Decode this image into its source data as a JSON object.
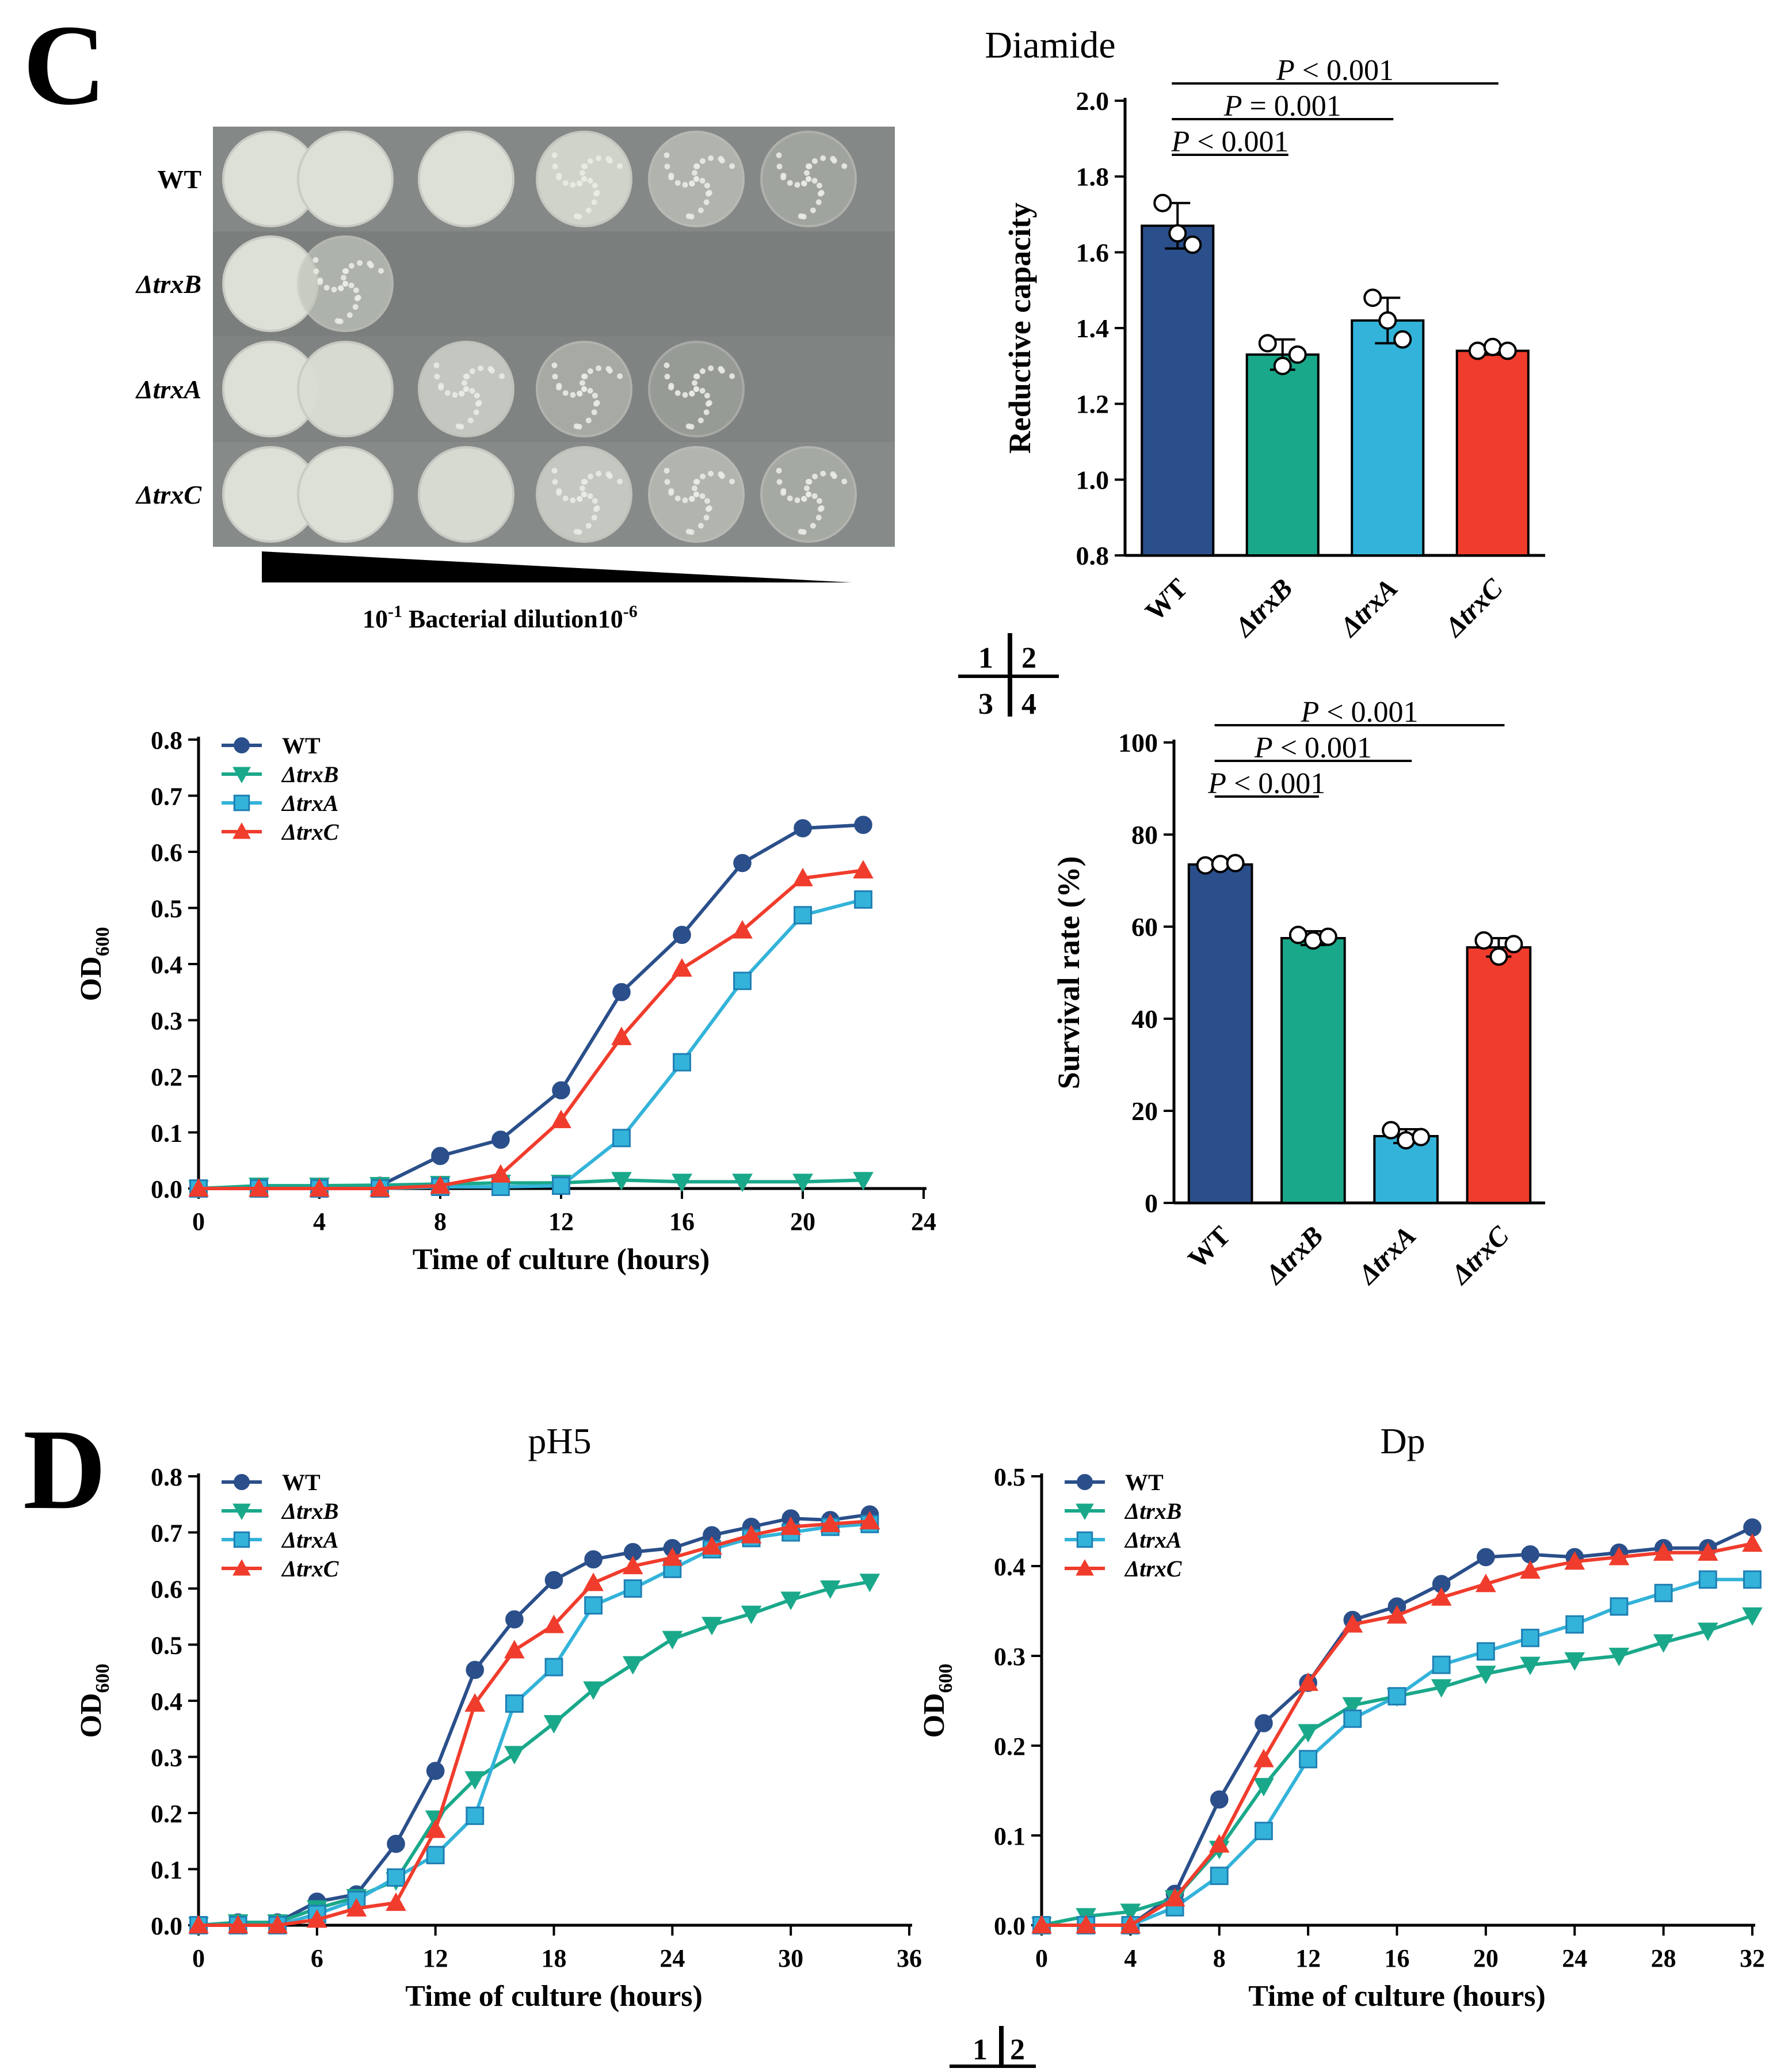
{
  "panel_c": {
    "label": "C",
    "plate": {
      "rows": [
        "WT",
        "ΔtrxB",
        "ΔtrxA",
        "ΔtrxC"
      ],
      "dilution_label": "Bacterial dilution",
      "dilution_start": "10",
      "dilution_start_exp": "-1",
      "dilution_end": "10",
      "dilution_end_exp": "-6"
    },
    "layout_key": {
      "q1": "1",
      "q2": "2",
      "q3": "3",
      "q4": "4"
    }
  },
  "panel_d": {
    "label": "D",
    "layout_key": {
      "q1": "1",
      "q2": "2"
    }
  },
  "colors": {
    "WT": "#2a4f8a",
    "ΔtrxB": "#1aa88a",
    "ΔtrxA": "#33b3d9",
    "ΔtrxC": "#f03c2c"
  },
  "chart_data": [
    {
      "id": "reductive",
      "type": "bar",
      "title": "Diamide",
      "ylabel": "Reductive capacity",
      "xlabel": "",
      "ylim": [
        0.8,
        2.0
      ],
      "yticks": [
        0.8,
        1.0,
        1.2,
        1.4,
        1.6,
        1.8,
        2.0
      ],
      "categories": [
        "WT",
        "ΔtrxB",
        "ΔtrxA",
        "ΔtrxC"
      ],
      "values": [
        1.67,
        1.33,
        1.42,
        1.34
      ],
      "errors": [
        0.06,
        0.04,
        0.06,
        0.01
      ],
      "points": [
        [
          1.73,
          1.65,
          1.62
        ],
        [
          1.36,
          1.3,
          1.33
        ],
        [
          1.48,
          1.42,
          1.37
        ],
        [
          1.34,
          1.35,
          1.34
        ]
      ],
      "comparisons": [
        {
          "from": "WT",
          "to": "ΔtrxB",
          "label_p": "P",
          "label_rest": " < 0.001"
        },
        {
          "from": "WT",
          "to": "ΔtrxA",
          "label_p": "P",
          "label_rest": " = 0.001"
        },
        {
          "from": "WT",
          "to": "ΔtrxC",
          "label_p": "P",
          "label_rest": " < 0.001"
        }
      ]
    },
    {
      "id": "growth_diamide",
      "type": "line",
      "title": "",
      "xlabel": "Time of culture (hours)",
      "ylabel": "OD",
      "ylabel_sub": "600",
      "xlim": [
        0,
        24
      ],
      "ylim": [
        0,
        0.8
      ],
      "xticks": [
        0,
        4,
        8,
        12,
        16,
        20,
        24
      ],
      "yticks": [
        0.0,
        0.1,
        0.2,
        0.3,
        0.4,
        0.5,
        0.6,
        0.7,
        0.8
      ],
      "legend": "top-left",
      "series": [
        {
          "name": "WT",
          "marker": "circle",
          "x": [
            0,
            2,
            4,
            6,
            8,
            10,
            12,
            14,
            16,
            18,
            20,
            22
          ],
          "y": [
            0,
            0,
            0,
            0.005,
            0.058,
            0.087,
            0.175,
            0.35,
            0.452,
            0.58,
            0.642,
            0.648
          ]
        },
        {
          "name": "ΔtrxB",
          "marker": "tri-down",
          "x": [
            0,
            2,
            4,
            6,
            8,
            10,
            12,
            14,
            16,
            18,
            20,
            22
          ],
          "y": [
            0,
            0.005,
            0.005,
            0.006,
            0.008,
            0.01,
            0.01,
            0.015,
            0.012,
            0.012,
            0.012,
            0.015
          ]
        },
        {
          "name": "ΔtrxA",
          "marker": "square",
          "x": [
            0,
            2,
            4,
            6,
            8,
            10,
            12,
            14,
            16,
            18,
            20,
            22
          ],
          "y": [
            0,
            0,
            0,
            0,
            0.003,
            0.003,
            0.005,
            0.09,
            0.225,
            0.37,
            0.487,
            0.515
          ]
        },
        {
          "name": "ΔtrxC",
          "marker": "tri-up",
          "x": [
            0,
            2,
            4,
            6,
            8,
            10,
            12,
            14,
            16,
            18,
            20,
            22
          ],
          "y": [
            0,
            0,
            0,
            0,
            0.005,
            0.025,
            0.122,
            0.27,
            0.392,
            0.46,
            0.553,
            0.567
          ]
        }
      ]
    },
    {
      "id": "survival",
      "type": "bar",
      "title": "",
      "ylabel": "Survival rate (%)",
      "xlabel": "",
      "ylim": [
        0,
        100
      ],
      "yticks": [
        0,
        20,
        40,
        60,
        80,
        100
      ],
      "categories": [
        "WT",
        "ΔtrxB",
        "ΔtrxA",
        "ΔtrxC"
      ],
      "values": [
        73.5,
        57.5,
        14.5,
        55.5
      ],
      "errors": [
        0.5,
        1.5,
        1.5,
        2
      ],
      "points": [
        [
          73.3,
          73.6,
          73.8
        ],
        [
          58.2,
          57.0,
          57.8
        ],
        [
          15.8,
          13.6,
          14.3
        ],
        [
          57.0,
          53.5,
          56.2
        ]
      ],
      "comparisons": [
        {
          "from": "WT",
          "to": "ΔtrxB",
          "label_p": "P",
          "label_rest": " < 0.001"
        },
        {
          "from": "WT",
          "to": "ΔtrxA",
          "label_p": "P",
          "label_rest": " < 0.001"
        },
        {
          "from": "WT",
          "to": "ΔtrxC",
          "label_p": "P",
          "label_rest": " < 0.001"
        }
      ]
    },
    {
      "id": "growth_ph5",
      "type": "line",
      "title": "pH5",
      "xlabel": "Time of culture (hours)",
      "ylabel": "OD",
      "ylabel_sub": "600",
      "xlim": [
        0,
        36
      ],
      "ylim": [
        0,
        0.8
      ],
      "xticks": [
        0,
        6,
        12,
        18,
        24,
        30,
        36
      ],
      "yticks": [
        0.0,
        0.1,
        0.2,
        0.3,
        0.4,
        0.5,
        0.6,
        0.7,
        0.8
      ],
      "legend": "top-left",
      "series": [
        {
          "name": "WT",
          "marker": "circle",
          "x": [
            0,
            2,
            4,
            6,
            8,
            10,
            12,
            14,
            16,
            18,
            20,
            22,
            24,
            26,
            28,
            30,
            32,
            34
          ],
          "y": [
            0,
            0.005,
            0.005,
            0.042,
            0.055,
            0.145,
            0.275,
            0.455,
            0.545,
            0.615,
            0.652,
            0.665,
            0.672,
            0.695,
            0.71,
            0.725,
            0.722,
            0.732
          ]
        },
        {
          "name": "ΔtrxB",
          "marker": "tri-down",
          "x": [
            0,
            2,
            4,
            6,
            8,
            10,
            12,
            14,
            16,
            18,
            20,
            22,
            24,
            26,
            28,
            30,
            32,
            34
          ],
          "y": [
            0,
            0.005,
            0.005,
            0.03,
            0.05,
            0.08,
            0.19,
            0.26,
            0.305,
            0.36,
            0.42,
            0.465,
            0.51,
            0.535,
            0.555,
            0.58,
            0.6,
            0.612
          ]
        },
        {
          "name": "ΔtrxA",
          "marker": "square",
          "x": [
            0,
            2,
            4,
            6,
            8,
            10,
            12,
            14,
            16,
            18,
            20,
            22,
            24,
            26,
            28,
            30,
            32,
            34
          ],
          "y": [
            0,
            0,
            0,
            0.02,
            0.045,
            0.085,
            0.125,
            0.195,
            0.395,
            0.46,
            0.57,
            0.6,
            0.635,
            0.67,
            0.69,
            0.7,
            0.71,
            0.715
          ]
        },
        {
          "name": "ΔtrxC",
          "marker": "tri-up",
          "x": [
            0,
            2,
            4,
            6,
            8,
            10,
            12,
            14,
            16,
            18,
            20,
            22,
            24,
            26,
            28,
            30,
            32,
            34
          ],
          "y": [
            0,
            0,
            0,
            0.01,
            0.03,
            0.04,
            0.17,
            0.395,
            0.49,
            0.535,
            0.61,
            0.64,
            0.655,
            0.675,
            0.695,
            0.71,
            0.715,
            0.72
          ]
        }
      ]
    },
    {
      "id": "growth_dp",
      "type": "line",
      "title": "Dp",
      "xlabel": "Time of culture (hours)",
      "ylabel": "OD",
      "ylabel_sub": "600",
      "xlim": [
        0,
        32
      ],
      "ylim": [
        0,
        0.5
      ],
      "xticks": [
        0,
        4,
        8,
        12,
        16,
        20,
        24,
        28,
        32
      ],
      "yticks": [
        0.0,
        0.1,
        0.2,
        0.3,
        0.4,
        0.5
      ],
      "legend": "top-left",
      "series": [
        {
          "name": "WT",
          "marker": "circle",
          "x": [
            0,
            2,
            4,
            6,
            8,
            10,
            12,
            14,
            16,
            18,
            20,
            22,
            24,
            26,
            28,
            30,
            32
          ],
          "y": [
            0,
            0,
            0,
            0.035,
            0.14,
            0.225,
            0.27,
            0.34,
            0.355,
            0.38,
            0.41,
            0.413,
            0.41,
            0.415,
            0.42,
            0.42,
            0.443
          ]
        },
        {
          "name": "ΔtrxB",
          "marker": "tri-down",
          "x": [
            0,
            2,
            4,
            6,
            8,
            10,
            12,
            14,
            16,
            18,
            20,
            22,
            24,
            26,
            28,
            30,
            32
          ],
          "y": [
            0,
            0.01,
            0.015,
            0.03,
            0.085,
            0.155,
            0.215,
            0.245,
            0.255,
            0.265,
            0.28,
            0.29,
            0.295,
            0.3,
            0.315,
            0.328,
            0.345
          ]
        },
        {
          "name": "ΔtrxA",
          "marker": "square",
          "x": [
            0,
            2,
            4,
            6,
            8,
            10,
            12,
            14,
            16,
            18,
            20,
            22,
            24,
            26,
            28,
            30,
            32
          ],
          "y": [
            0,
            0,
            0,
            0.02,
            0.055,
            0.105,
            0.185,
            0.23,
            0.255,
            0.29,
            0.305,
            0.32,
            0.335,
            0.355,
            0.37,
            0.385,
            0.385
          ]
        },
        {
          "name": "ΔtrxC",
          "marker": "tri-up",
          "x": [
            0,
            2,
            4,
            6,
            8,
            10,
            12,
            14,
            16,
            18,
            20,
            22,
            24,
            26,
            28,
            30,
            32
          ],
          "y": [
            0,
            0,
            0,
            0.03,
            0.09,
            0.185,
            0.27,
            0.335,
            0.345,
            0.365,
            0.38,
            0.395,
            0.405,
            0.41,
            0.415,
            0.415,
            0.425
          ]
        }
      ]
    }
  ]
}
